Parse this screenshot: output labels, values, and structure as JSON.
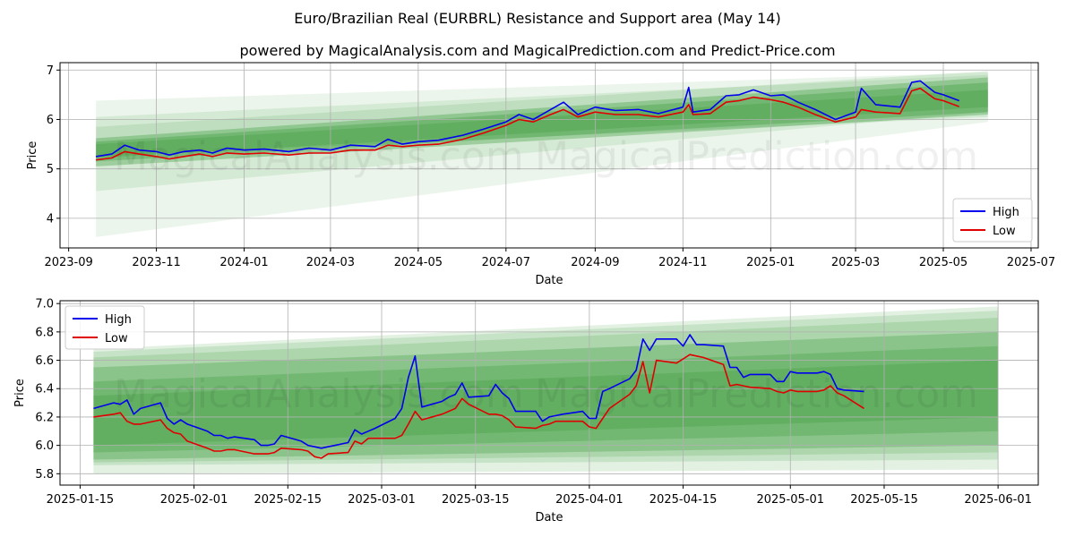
{
  "title": "Euro/Brazilian Real (EURBRL) Resistance and Support area (May 14)",
  "subtitle": "powered by MagicalAnalysis.com and MagicalPrediction.com and Predict-Price.com",
  "watermark": "MagicalAnalysis.com   MagicalPrediction.com",
  "colors": {
    "high": "#0000ee",
    "low": "#e00000",
    "band": "#3a9a3a",
    "grid": "#b0b0b0"
  },
  "chart_data": [
    {
      "type": "line",
      "xlabel": "Date",
      "ylabel": "Price",
      "xlim": [
        "2023-08-26",
        "2025-07-06"
      ],
      "ylim": [
        3.4,
        7.15
      ],
      "x_ticks": [
        "2023-09",
        "2023-11",
        "2024-01",
        "2024-03",
        "2024-05",
        "2024-07",
        "2024-09",
        "2024-11",
        "2025-01",
        "2025-03",
        "2025-05",
        "2025-07"
      ],
      "y_ticks": [
        "4",
        "5",
        "6",
        "7"
      ],
      "legend": "bottom-right",
      "grid": true,
      "band_range": [
        "2023-09-20",
        "2025-06-01"
      ],
      "bands": [
        {
          "start": [
            5.25,
            5.85
          ],
          "end": [
            6.05,
            6.98
          ],
          "opacity": 0.14
        },
        {
          "start": [
            4.55,
            6.05
          ],
          "end": [
            6.15,
            6.9
          ],
          "opacity": 0.12
        },
        {
          "start": [
            3.62,
            6.38
          ],
          "end": [
            5.95,
            6.95
          ],
          "opacity": 0.1
        },
        {
          "start": [
            5.05,
            5.62
          ],
          "end": [
            6.1,
            6.85
          ],
          "opacity": 0.35
        },
        {
          "start": [
            5.15,
            5.55
          ],
          "end": [
            6.15,
            6.75
          ],
          "opacity": 0.35
        },
        {
          "start": [
            5.22,
            5.5
          ],
          "end": [
            6.25,
            6.6
          ],
          "opacity": 0.3
        }
      ],
      "series": [
        {
          "name": "High",
          "color": "#0000ee",
          "x": [
            "2023-09-20",
            "2023-10-01",
            "2023-10-10",
            "2023-10-20",
            "2023-11-01",
            "2023-11-10",
            "2023-11-20",
            "2023-12-01",
            "2023-12-10",
            "2023-12-20",
            "2024-01-01",
            "2024-01-15",
            "2024-02-01",
            "2024-02-15",
            "2024-03-01",
            "2024-03-15",
            "2024-04-01",
            "2024-04-10",
            "2024-04-20",
            "2024-05-01",
            "2024-05-15",
            "2024-06-01",
            "2024-06-15",
            "2024-07-01",
            "2024-07-10",
            "2024-07-20",
            "2024-08-01",
            "2024-08-10",
            "2024-08-20",
            "2024-09-01",
            "2024-09-15",
            "2024-10-01",
            "2024-10-15",
            "2024-11-01",
            "2024-11-05",
            "2024-11-08",
            "2024-11-20",
            "2024-12-01",
            "2024-12-10",
            "2024-12-20",
            "2025-01-01",
            "2025-01-10",
            "2025-01-20",
            "2025-02-01",
            "2025-02-15",
            "2025-03-01",
            "2025-03-05",
            "2025-03-15",
            "2025-04-01",
            "2025-04-09",
            "2025-04-15",
            "2025-04-25",
            "2025-05-01",
            "2025-05-12"
          ],
          "values": [
            5.25,
            5.3,
            5.48,
            5.38,
            5.35,
            5.28,
            5.35,
            5.38,
            5.32,
            5.42,
            5.38,
            5.4,
            5.35,
            5.42,
            5.38,
            5.48,
            5.45,
            5.6,
            5.5,
            5.55,
            5.58,
            5.68,
            5.8,
            5.95,
            6.1,
            6.0,
            6.2,
            6.35,
            6.1,
            6.25,
            6.18,
            6.2,
            6.12,
            6.25,
            6.65,
            6.15,
            6.2,
            6.48,
            6.5,
            6.6,
            6.48,
            6.5,
            6.35,
            6.2,
            6.0,
            6.15,
            6.63,
            6.3,
            6.25,
            6.75,
            6.78,
            6.55,
            6.5,
            6.38
          ]
        },
        {
          "name": "Low",
          "color": "#e00000",
          "x": [
            "2023-09-20",
            "2023-10-01",
            "2023-10-10",
            "2023-10-20",
            "2023-11-01",
            "2023-11-10",
            "2023-11-20",
            "2023-12-01",
            "2023-12-10",
            "2023-12-20",
            "2024-01-01",
            "2024-01-15",
            "2024-02-01",
            "2024-02-15",
            "2024-03-01",
            "2024-03-15",
            "2024-04-01",
            "2024-04-10",
            "2024-04-20",
            "2024-05-01",
            "2024-05-15",
            "2024-06-01",
            "2024-06-15",
            "2024-07-01",
            "2024-07-10",
            "2024-07-20",
            "2024-08-01",
            "2024-08-10",
            "2024-08-20",
            "2024-09-01",
            "2024-09-15",
            "2024-10-01",
            "2024-10-15",
            "2024-11-01",
            "2024-11-05",
            "2024-11-08",
            "2024-11-20",
            "2024-12-01",
            "2024-12-10",
            "2024-12-20",
            "2025-01-01",
            "2025-01-10",
            "2025-01-20",
            "2025-02-01",
            "2025-02-15",
            "2025-03-01",
            "2025-03-05",
            "2025-03-15",
            "2025-04-01",
            "2025-04-09",
            "2025-04-15",
            "2025-04-25",
            "2025-05-01",
            "2025-05-12"
          ],
          "values": [
            5.18,
            5.22,
            5.35,
            5.3,
            5.25,
            5.2,
            5.25,
            5.3,
            5.25,
            5.32,
            5.3,
            5.32,
            5.28,
            5.32,
            5.32,
            5.38,
            5.38,
            5.48,
            5.45,
            5.48,
            5.5,
            5.6,
            5.72,
            5.88,
            6.0,
            5.95,
            6.1,
            6.2,
            6.05,
            6.15,
            6.1,
            6.1,
            6.05,
            6.15,
            6.3,
            6.1,
            6.12,
            6.35,
            6.38,
            6.45,
            6.4,
            6.35,
            6.25,
            6.1,
            5.95,
            6.05,
            6.2,
            6.15,
            6.12,
            6.58,
            6.63,
            6.42,
            6.38,
            6.26
          ]
        }
      ]
    },
    {
      "type": "line",
      "xlabel": "Date",
      "ylabel": "Price",
      "xlim": [
        "2025-01-12",
        "2025-06-07"
      ],
      "ylim": [
        5.72,
        7.02
      ],
      "x_ticks": [
        "2025-01-15",
        "2025-02-01",
        "2025-02-15",
        "2025-03-01",
        "2025-03-15",
        "2025-04-01",
        "2025-04-15",
        "2025-05-01",
        "2025-05-15",
        "2025-06-01"
      ],
      "y_ticks": [
        "5.8",
        "6.0",
        "6.2",
        "6.4",
        "6.6",
        "6.8",
        "7.0"
      ],
      "legend": "top-left",
      "grid": true,
      "band_range": [
        "2025-01-17",
        "2025-06-01"
      ],
      "bands": [
        {
          "start": [
            5.8,
            6.68
          ],
          "end": [
            5.83,
            6.98
          ],
          "opacity": 0.14
        },
        {
          "start": [
            5.86,
            6.66
          ],
          "end": [
            5.9,
            6.95
          ],
          "opacity": 0.16
        },
        {
          "start": [
            5.88,
            6.62
          ],
          "end": [
            5.95,
            6.9
          ],
          "opacity": 0.18
        },
        {
          "start": [
            5.9,
            6.55
          ],
          "end": [
            6.0,
            6.8
          ],
          "opacity": 0.3
        },
        {
          "start": [
            5.95,
            6.45
          ],
          "end": [
            6.1,
            6.7
          ],
          "opacity": 0.3
        },
        {
          "start": [
            6.0,
            6.35
          ],
          "end": [
            6.2,
            6.6
          ],
          "opacity": 0.28
        }
      ],
      "series": [
        {
          "name": "High",
          "color": "#0000ee",
          "x": [
            "2025-01-17",
            "2025-01-20",
            "2025-01-21",
            "2025-01-22",
            "2025-01-23",
            "2025-01-24",
            "2025-01-27",
            "2025-01-28",
            "2025-01-29",
            "2025-01-30",
            "2025-01-31",
            "2025-02-03",
            "2025-02-04",
            "2025-02-05",
            "2025-02-06",
            "2025-02-07",
            "2025-02-10",
            "2025-02-11",
            "2025-02-12",
            "2025-02-13",
            "2025-02-14",
            "2025-02-17",
            "2025-02-18",
            "2025-02-19",
            "2025-02-20",
            "2025-02-21",
            "2025-02-24",
            "2025-02-25",
            "2025-02-26",
            "2025-02-27",
            "2025-02-28",
            "2025-03-03",
            "2025-03-04",
            "2025-03-05",
            "2025-03-06",
            "2025-03-07",
            "2025-03-10",
            "2025-03-11",
            "2025-03-12",
            "2025-03-13",
            "2025-03-14",
            "2025-03-17",
            "2025-03-18",
            "2025-03-19",
            "2025-03-20",
            "2025-03-21",
            "2025-03-24",
            "2025-03-25",
            "2025-03-26",
            "2025-03-27",
            "2025-03-28",
            "2025-03-31",
            "2025-04-01",
            "2025-04-02",
            "2025-04-03",
            "2025-04-04",
            "2025-04-07",
            "2025-04-08",
            "2025-04-09",
            "2025-04-10",
            "2025-04-11",
            "2025-04-14",
            "2025-04-15",
            "2025-04-16",
            "2025-04-17",
            "2025-04-18",
            "2025-04-21",
            "2025-04-22",
            "2025-04-23",
            "2025-04-24",
            "2025-04-25",
            "2025-04-28",
            "2025-04-29",
            "2025-04-30",
            "2025-05-01",
            "2025-05-02",
            "2025-05-05",
            "2025-05-06",
            "2025-05-07",
            "2025-05-08",
            "2025-05-09",
            "2025-05-12"
          ],
          "values": [
            6.26,
            6.3,
            6.29,
            6.32,
            6.22,
            6.26,
            6.3,
            6.19,
            6.15,
            6.18,
            6.15,
            6.1,
            6.07,
            6.07,
            6.05,
            6.06,
            6.04,
            6.0,
            6.0,
            6.01,
            6.07,
            6.03,
            6.0,
            5.99,
            5.98,
            5.99,
            6.02,
            6.11,
            6.08,
            6.1,
            6.12,
            6.19,
            6.26,
            6.48,
            6.63,
            6.27,
            6.31,
            6.34,
            6.36,
            6.44,
            6.34,
            6.35,
            6.43,
            6.37,
            6.33,
            6.24,
            6.24,
            6.17,
            6.2,
            6.21,
            6.22,
            6.24,
            6.19,
            6.19,
            6.38,
            6.4,
            6.47,
            6.53,
            6.75,
            6.67,
            6.75,
            6.75,
            6.7,
            6.78,
            6.71,
            6.71,
            6.7,
            6.55,
            6.55,
            6.48,
            6.5,
            6.5,
            6.45,
            6.45,
            6.52,
            6.51,
            6.51,
            6.52,
            6.5,
            6.4,
            6.39,
            6.38
          ]
        },
        {
          "name": "Low",
          "color": "#e00000",
          "x": [
            "2025-01-17",
            "2025-01-20",
            "2025-01-21",
            "2025-01-22",
            "2025-01-23",
            "2025-01-24",
            "2025-01-27",
            "2025-01-28",
            "2025-01-29",
            "2025-01-30",
            "2025-01-31",
            "2025-02-03",
            "2025-02-04",
            "2025-02-05",
            "2025-02-06",
            "2025-02-07",
            "2025-02-10",
            "2025-02-11",
            "2025-02-12",
            "2025-02-13",
            "2025-02-14",
            "2025-02-17",
            "2025-02-18",
            "2025-02-19",
            "2025-02-20",
            "2025-02-21",
            "2025-02-24",
            "2025-02-25",
            "2025-02-26",
            "2025-02-27",
            "2025-02-28",
            "2025-03-03",
            "2025-03-04",
            "2025-03-05",
            "2025-03-06",
            "2025-03-07",
            "2025-03-10",
            "2025-03-11",
            "2025-03-12",
            "2025-03-13",
            "2025-03-14",
            "2025-03-17",
            "2025-03-18",
            "2025-03-19",
            "2025-03-20",
            "2025-03-21",
            "2025-03-24",
            "2025-03-25",
            "2025-03-26",
            "2025-03-27",
            "2025-03-28",
            "2025-03-31",
            "2025-04-01",
            "2025-04-02",
            "2025-04-03",
            "2025-04-04",
            "2025-04-07",
            "2025-04-08",
            "2025-04-09",
            "2025-04-10",
            "2025-04-11",
            "2025-04-14",
            "2025-04-15",
            "2025-04-16",
            "2025-04-17",
            "2025-04-18",
            "2025-04-21",
            "2025-04-22",
            "2025-04-23",
            "2025-04-24",
            "2025-04-25",
            "2025-04-28",
            "2025-04-29",
            "2025-04-30",
            "2025-05-01",
            "2025-05-02",
            "2025-05-05",
            "2025-05-06",
            "2025-05-07",
            "2025-05-08",
            "2025-05-09",
            "2025-05-12"
          ],
          "values": [
            6.2,
            6.22,
            6.23,
            6.17,
            6.15,
            6.15,
            6.18,
            6.12,
            6.09,
            6.08,
            6.03,
            5.98,
            5.96,
            5.96,
            5.97,
            5.97,
            5.94,
            5.94,
            5.94,
            5.95,
            5.98,
            5.97,
            5.96,
            5.92,
            5.91,
            5.94,
            5.95,
            6.03,
            6.01,
            6.05,
            6.05,
            6.05,
            6.07,
            6.15,
            6.24,
            6.18,
            6.22,
            6.24,
            6.26,
            6.33,
            6.29,
            6.22,
            6.22,
            6.21,
            6.18,
            6.13,
            6.12,
            6.14,
            6.15,
            6.17,
            6.17,
            6.17,
            6.13,
            6.12,
            6.19,
            6.26,
            6.36,
            6.42,
            6.59,
            6.37,
            6.6,
            6.58,
            6.61,
            6.64,
            6.63,
            6.62,
            6.57,
            6.42,
            6.43,
            6.42,
            6.41,
            6.4,
            6.38,
            6.37,
            6.39,
            6.38,
            6.38,
            6.39,
            6.42,
            6.37,
            6.35,
            6.26
          ]
        }
      ]
    }
  ]
}
